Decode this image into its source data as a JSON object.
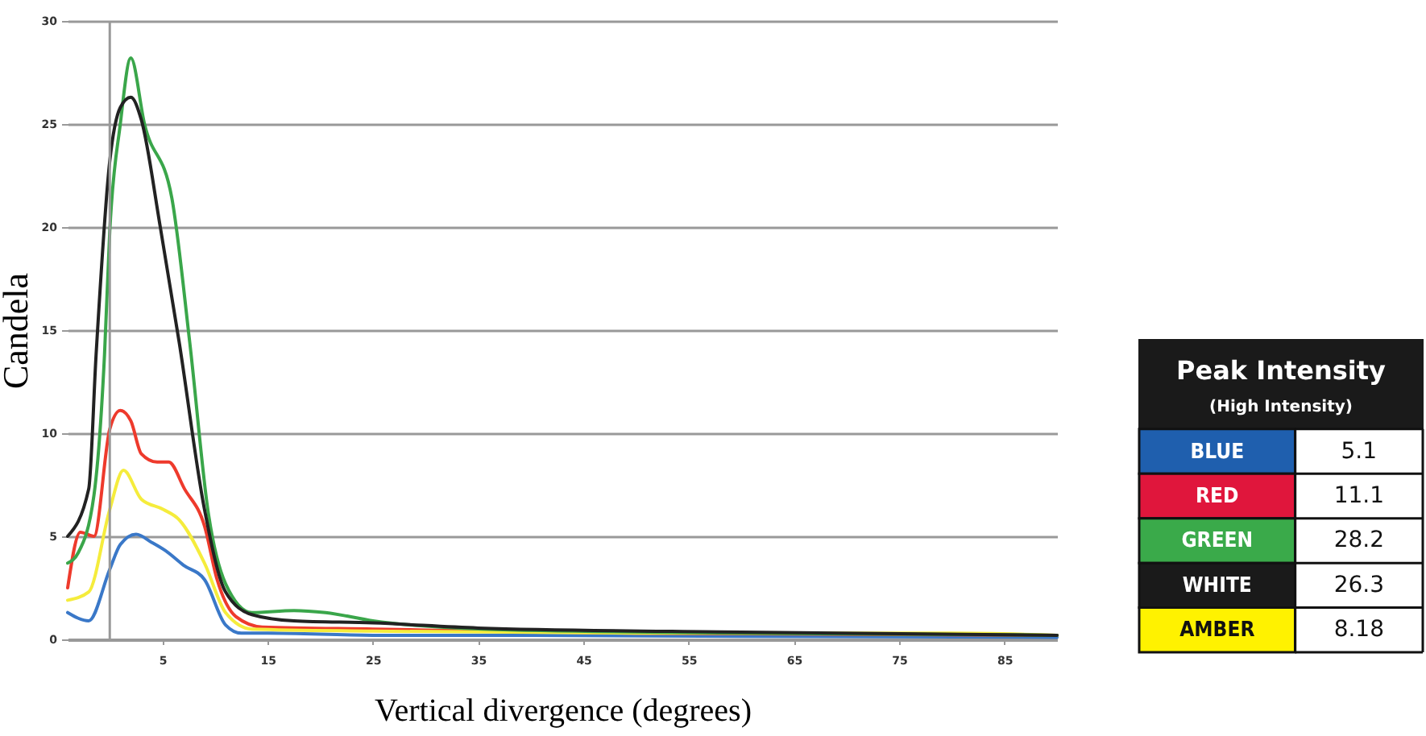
{
  "chart_data": [
    {
      "type": "line",
      "xlabel": "Vertical divergence (degrees)",
      "ylabel": "Candela",
      "xlim": [
        -4,
        90
      ],
      "ylim": [
        0,
        30
      ],
      "xticks": [
        5,
        15,
        25,
        35,
        45,
        55,
        65,
        75,
        85
      ],
      "yticks": [
        0,
        5,
        10,
        15,
        20,
        25,
        30
      ],
      "grid": "y",
      "ref_lines": [
        {
          "axis": "x",
          "value": 0,
          "color": "#999999"
        }
      ],
      "series": [
        {
          "color": "#3a78c8",
          "x": [
            -4,
            -2,
            0,
            1,
            2.5,
            4,
            5.3,
            7,
            9,
            11,
            12.5,
            15,
            25,
            40,
            60,
            90
          ],
          "values": [
            1.3,
            0.9,
            3.4,
            4.6,
            5.1,
            4.7,
            4.3,
            3.6,
            2.9,
            0.7,
            0.3,
            0.3,
            0.2,
            0.2,
            0.15,
            0.1
          ]
        },
        {
          "color": "#ee3a2c",
          "x": [
            -4,
            -2.8,
            -1.5,
            0,
            1,
            2,
            3,
            4.5,
            5.6,
            7.1,
            9,
            10.2,
            12,
            14.5,
            25,
            50,
            90
          ],
          "values": [
            2.5,
            5.2,
            5,
            10.2,
            11.1,
            10.6,
            9,
            8.6,
            8.6,
            7.3,
            5.5,
            2.9,
            1.1,
            0.6,
            0.5,
            0.3,
            0.2
          ]
        },
        {
          "color": "#f5ec3c",
          "x": [
            -4,
            -2,
            0,
            1.3,
            3,
            5.1,
            6.6,
            9,
            11,
            13.5,
            25,
            50,
            80,
            90
          ],
          "values": [
            1.9,
            2.3,
            6.3,
            8.2,
            6.8,
            6.3,
            5.8,
            3.7,
            1.3,
            0.5,
            0.4,
            0.3,
            0.3,
            0.2
          ]
        },
        {
          "color": "#3aa64a",
          "x": [
            -4,
            -3,
            -1.5,
            -0.5,
            0,
            1,
            2,
            3.3,
            5.9,
            7.6,
            9.4,
            11,
            13.5,
            17.5,
            20.5,
            25,
            35.5,
            60,
            90
          ],
          "values": [
            3.7,
            4.2,
            7,
            13.8,
            19.8,
            25,
            28.2,
            25,
            21.4,
            14.4,
            6,
            2.7,
            1.3,
            1.4,
            1.3,
            0.9,
            0.5,
            0.3,
            0.2
          ]
        },
        {
          "color": "#222222",
          "x": [
            -4,
            -2,
            -1.3,
            0,
            1,
            2,
            3,
            4.8,
            6.6,
            9,
            11,
            13.5,
            17.5,
            25,
            35,
            60,
            90
          ],
          "values": [
            5,
            7.3,
            13.8,
            23.2,
            25.8,
            26.3,
            25.2,
            20,
            14.4,
            6.3,
            2.3,
            1.2,
            0.9,
            0.8,
            0.55,
            0.35,
            0.2
          ]
        }
      ]
    },
    {
      "type": "other",
      "title": "Peak Intensity",
      "subtitle": "(High Intensity)",
      "categories": [
        "BLUE",
        "RED",
        "GREEN",
        "WHITE",
        "AMBER"
      ],
      "values": [
        5.1,
        11.1,
        28.2,
        26.3,
        8.18
      ],
      "colors": [
        "#1f5fae",
        "#e0163c",
        "#3aaa4a",
        "#1a1a1a",
        "#fff200"
      ],
      "data_labels": true
    }
  ]
}
